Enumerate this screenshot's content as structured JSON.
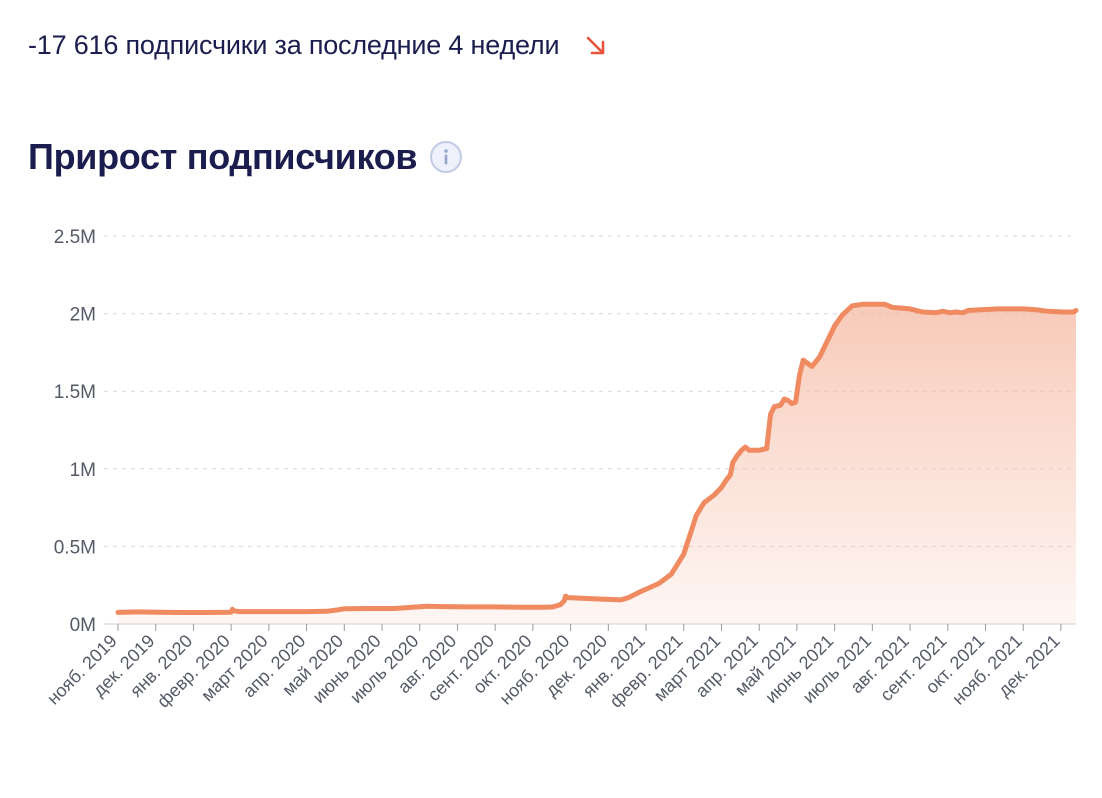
{
  "summary": {
    "text": "-17 616 подписчики за последние 4 недели",
    "trend_icon": "arrow-down-right-icon",
    "trend_color": "#e8553a"
  },
  "chart_title": "Прирост подписчиков",
  "info_icon": "info-icon",
  "colors": {
    "line": "#f08a60",
    "fill": "#f6b9a2",
    "text_dark": "#1a1d4e",
    "axis": "#555a66",
    "grid": "#d9d9d9"
  },
  "chart_data": {
    "type": "area",
    "title": "Прирост подписчиков",
    "xlabel": "",
    "ylabel": "",
    "ylim": [
      0,
      2500000
    ],
    "yticks": [
      {
        "value": 0,
        "label": "0M"
      },
      {
        "value": 500000,
        "label": "0.5M"
      },
      {
        "value": 1000000,
        "label": "1M"
      },
      {
        "value": 1500000,
        "label": "1.5M"
      },
      {
        "value": 2000000,
        "label": "2M"
      },
      {
        "value": 2500000,
        "label": "2.5M"
      }
    ],
    "grid": true,
    "legend": false,
    "categories": [
      "нояб. 2019",
      "дек. 2019",
      "янв. 2020",
      "февр. 2020",
      "март 2020",
      "апр. 2020",
      "май 2020",
      "июнь 2020",
      "июль 2020",
      "авг. 2020",
      "сент. 2020",
      "окт. 2020",
      "нояб. 2020",
      "дек. 2020",
      "янв. 2021",
      "февр. 2021",
      "март 2021",
      "апр. 2021",
      "май 2021",
      "июнь 2021",
      "июль 2021",
      "авг. 2021",
      "сент. 2021",
      "окт. 2021",
      "нояб. 2021",
      "дек. 2021"
    ],
    "series": [
      {
        "points": [
          [
            0,
            75000
          ],
          [
            0.8,
            78000
          ],
          [
            1.6,
            76000
          ],
          [
            2.5,
            74000
          ],
          [
            3.5,
            74000
          ],
          [
            4.5,
            76000
          ],
          [
            4.55,
            95000
          ],
          [
            4.62,
            85000
          ],
          [
            4.8,
            80000
          ],
          [
            5.5,
            80000
          ],
          [
            6.5,
            80000
          ],
          [
            7.5,
            80000
          ],
          [
            8.3,
            82000
          ],
          [
            8.7,
            90000
          ],
          [
            9,
            98000
          ],
          [
            10,
            100000
          ],
          [
            11,
            100000
          ],
          [
            11.7,
            108000
          ],
          [
            12.3,
            115000
          ],
          [
            13,
            112000
          ],
          [
            14,
            110000
          ],
          [
            15,
            110000
          ],
          [
            16,
            108000
          ],
          [
            17,
            108000
          ],
          [
            17.3,
            110000
          ],
          [
            17.6,
            125000
          ],
          [
            17.75,
            150000
          ],
          [
            17.8,
            180000
          ],
          [
            17.9,
            170000
          ],
          [
            19,
            162000
          ],
          [
            20,
            155000
          ],
          [
            20.3,
            170000
          ],
          [
            20.8,
            210000
          ],
          [
            21.5,
            260000
          ],
          [
            22,
            320000
          ],
          [
            22.5,
            450000
          ],
          [
            22.8,
            600000
          ],
          [
            23,
            700000
          ],
          [
            23.3,
            780000
          ],
          [
            23.7,
            830000
          ],
          [
            24,
            880000
          ],
          [
            24.2,
            930000
          ],
          [
            24.35,
            960000
          ],
          [
            24.45,
            1040000
          ],
          [
            24.6,
            1080000
          ],
          [
            24.8,
            1120000
          ],
          [
            24.95,
            1140000
          ],
          [
            25.1,
            1120000
          ],
          [
            25.5,
            1120000
          ],
          [
            25.8,
            1130000
          ],
          [
            25.95,
            1350000
          ],
          [
            26.1,
            1400000
          ],
          [
            26.35,
            1410000
          ],
          [
            26.5,
            1450000
          ],
          [
            26.65,
            1440000
          ],
          [
            26.8,
            1420000
          ],
          [
            26.95,
            1430000
          ],
          [
            27.1,
            1600000
          ],
          [
            27.25,
            1700000
          ],
          [
            27.6,
            1660000
          ],
          [
            27.9,
            1720000
          ],
          [
            28.2,
            1820000
          ],
          [
            28.5,
            1920000
          ],
          [
            28.8,
            1990000
          ],
          [
            29.2,
            2050000
          ],
          [
            29.6,
            2060000
          ],
          [
            30.5,
            2060000
          ],
          [
            30.8,
            2040000
          ],
          [
            31.5,
            2030000
          ],
          [
            32,
            2010000
          ],
          [
            32.5,
            2005000
          ],
          [
            32.8,
            2015000
          ],
          [
            33.1,
            2005000
          ],
          [
            33.3,
            2010000
          ],
          [
            33.6,
            2005000
          ],
          [
            33.8,
            2020000
          ],
          [
            34.3,
            2025000
          ],
          [
            35,
            2030000
          ],
          [
            36,
            2030000
          ],
          [
            36.5,
            2025000
          ],
          [
            37,
            2015000
          ],
          [
            37.6,
            2010000
          ],
          [
            38,
            2010000
          ],
          [
            38.1,
            2020000
          ]
        ]
      }
    ]
  }
}
